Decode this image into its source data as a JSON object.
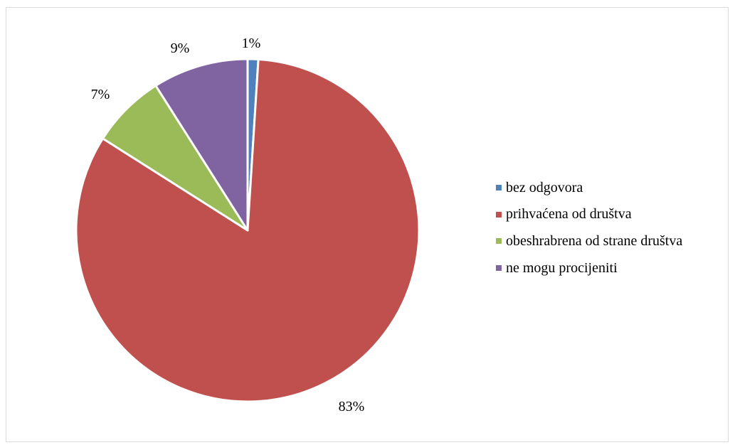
{
  "chart_data": {
    "type": "pie",
    "title": "",
    "categories": [
      "bez odgovora",
      "prihvaćena od društva",
      "obeshrabrena od strane društva",
      "ne mogu procijeniti"
    ],
    "values": [
      1,
      83,
      7,
      9
    ],
    "data_labels": [
      "1%",
      "83%",
      "7%",
      "9%"
    ],
    "colors": [
      "#4F81BD",
      "#C0504D",
      "#9BBB59",
      "#8064A2"
    ],
    "start_angle_deg": 0,
    "direction": "clockwise",
    "legend_position": "right"
  }
}
